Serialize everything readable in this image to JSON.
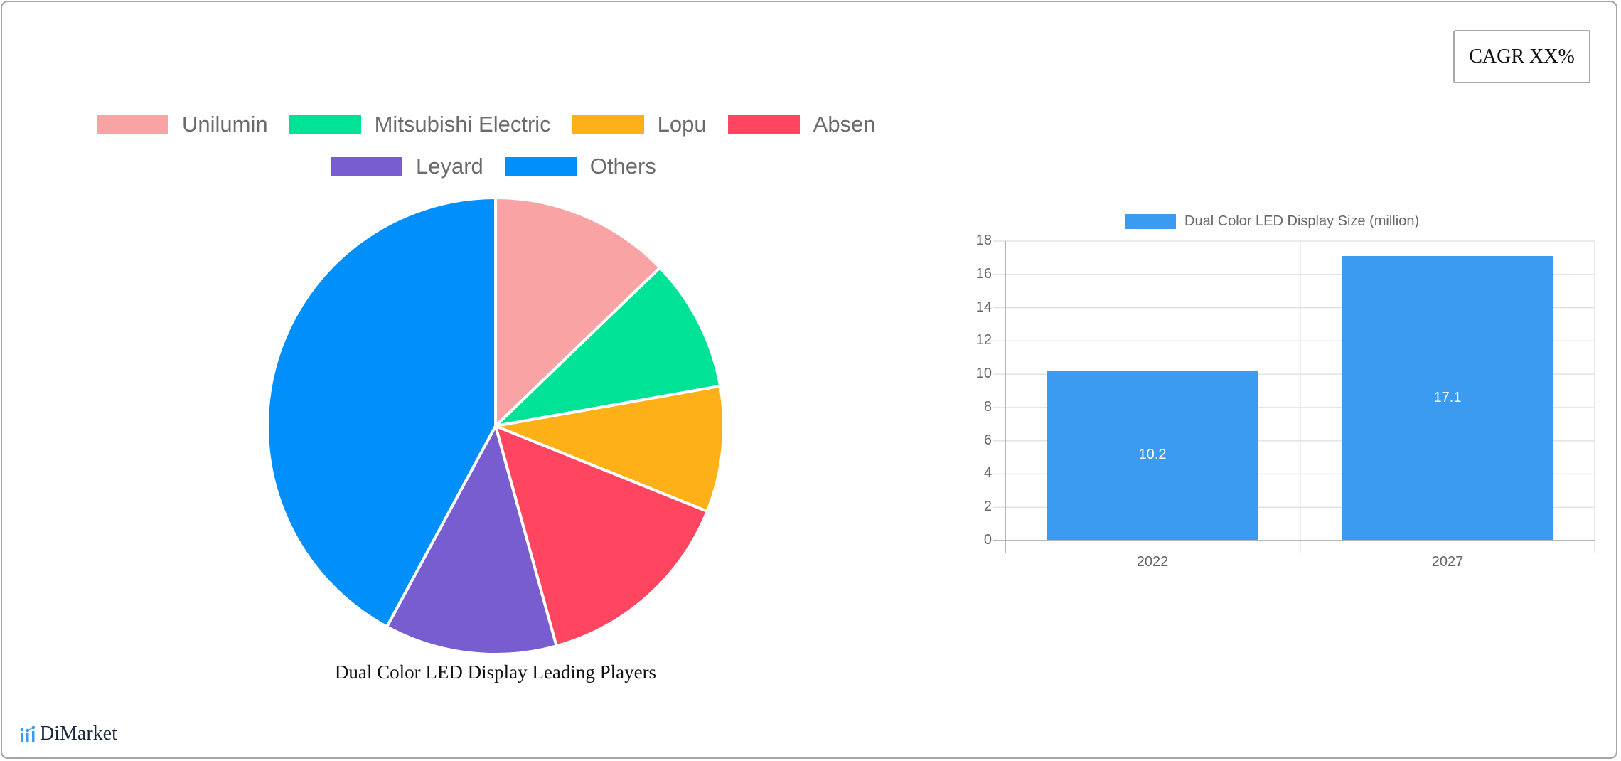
{
  "cagr_badge": {
    "label": "CAGR XX%"
  },
  "pie": {
    "title": "Dual Color LED Display Leading Players",
    "legend": [
      {
        "label": "Unilumin",
        "color": "#f9a3a4"
      },
      {
        "label": "Mitsubishi Electric",
        "color": "#00e396"
      },
      {
        "label": "Lopu",
        "color": "#feb019"
      },
      {
        "label": "Absen",
        "color": "#ff4560"
      },
      {
        "label": "Leyard",
        "color": "#775dd0"
      },
      {
        "label": "Others",
        "color": "#008ffb"
      }
    ]
  },
  "bar": {
    "legend_label": "Dual Color LED Display Size (million)",
    "bar_color": "#3a9bf0",
    "y_ticks": [
      "0",
      "2",
      "4",
      "6",
      "8",
      "10",
      "12",
      "14",
      "16",
      "18"
    ],
    "x_ticks": [
      "2022",
      "2027"
    ],
    "value_labels": [
      "10.2",
      "17.1"
    ]
  },
  "logo": {
    "text": "DiMarket"
  },
  "chart_data": [
    {
      "type": "pie",
      "title": "Dual Color LED Display Leading Players",
      "categories": [
        "Unilumin",
        "Mitsubishi Electric",
        "Lopu",
        "Absen",
        "Leyard",
        "Others"
      ],
      "values": [
        12.8,
        9.4,
        8.9,
        14.6,
        12.2,
        42.1
      ],
      "colors": [
        "#f9a3a4",
        "#00e396",
        "#feb019",
        "#ff4560",
        "#775dd0",
        "#008ffb"
      ],
      "legend_position": "top"
    },
    {
      "type": "bar",
      "title": "",
      "categories": [
        "2022",
        "2027"
      ],
      "series": [
        {
          "name": "Dual Color LED Display Size (million)",
          "values": [
            10.2,
            17.1
          ]
        }
      ],
      "xlabel": "",
      "ylabel": "",
      "ylim": [
        0,
        18
      ],
      "y_tick_step": 2,
      "grid": true,
      "legend_position": "top",
      "data_labels": true
    }
  ]
}
